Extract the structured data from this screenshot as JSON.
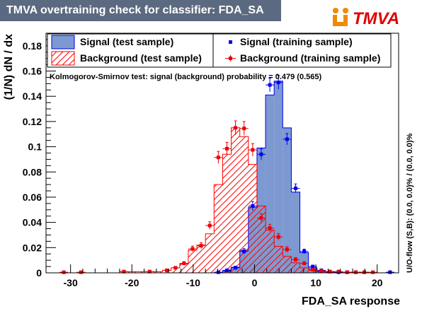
{
  "header": {
    "title": "TMVA overtraining check for classifier: FDA_SA",
    "logo_text": "TMVA"
  },
  "colors": {
    "title_bg": "#5b6a80",
    "signal_fill": "#7d99d1",
    "signal_line": "#0000ee",
    "background_hatch": "#ff0000",
    "logo_accent": "#f08a00",
    "logo_text": "#e00000"
  },
  "chart_data": {
    "type": "histogram",
    "title": "TMVA overtraining check for classifier: FDA_SA",
    "xlabel": "FDA_SA response",
    "ylabel": "(1/N) dN / dx",
    "xlim": [
      -34,
      23.5
    ],
    "ylim": [
      0,
      0.19
    ],
    "xticks": [
      -30,
      -20,
      -10,
      0,
      10,
      20
    ],
    "yticks": [
      0,
      0.02,
      0.04,
      0.06,
      0.08,
      0.1,
      0.12,
      0.14,
      0.16,
      0.18
    ],
    "grid": false,
    "bin_edges": [
      -33.2,
      -31.8,
      -30.4,
      -29.0,
      -27.6,
      -26.2,
      -24.8,
      -23.4,
      -22.0,
      -20.6,
      -19.2,
      -17.8,
      -16.4,
      -15.0,
      -13.6,
      -12.2,
      -10.8,
      -9.4,
      -8.0,
      -6.6,
      -5.2,
      -3.8,
      -2.4,
      -1.0,
      0.4,
      1.8,
      3.2,
      4.6,
      6.0,
      7.4,
      8.8,
      10.2,
      11.6,
      13.0,
      14.4,
      15.8,
      17.2,
      18.6,
      20.0,
      21.4,
      22.8
    ],
    "series": [
      {
        "name": "Signal (test sample)",
        "style": "filled-histogram",
        "values": [
          0,
          0,
          0,
          0,
          0,
          0,
          0,
          0,
          0,
          0,
          0,
          0,
          0,
          0,
          0,
          0,
          0,
          0,
          0,
          0,
          0.0015,
          0.0045,
          0.018,
          0.052,
          0.099,
          0.141,
          0.152,
          0.115,
          0.064,
          0.016,
          0.004,
          0.001,
          0.0005,
          0,
          0,
          0,
          0,
          0,
          0,
          0
        ]
      },
      {
        "name": "Background (test sample)",
        "style": "hatched-histogram",
        "values": [
          0,
          0,
          0,
          0,
          0,
          0,
          0,
          0,
          0.001,
          0.001,
          0.001,
          0.001,
          0.001,
          0.002,
          0.004,
          0.007,
          0.018,
          0.022,
          0.031,
          0.07,
          0.094,
          0.115,
          0.108,
          0.086,
          0.053,
          0.034,
          0.021,
          0.013,
          0.008,
          0.004,
          0.002,
          0.0015,
          0.001,
          0.0005,
          0.0005,
          0,
          0,
          0,
          0,
          0
        ]
      },
      {
        "name": "Signal (training sample)",
        "style": "markers",
        "x": [
          -5.9,
          -4.5,
          -3.1,
          -1.7,
          -0.3,
          1.1,
          2.5,
          3.9,
          5.3,
          6.7,
          8.1,
          9.5,
          10.9,
          12.3,
          13.7,
          15.1,
          16.5,
          17.9,
          22.1
        ],
        "y": [
          0.0005,
          0.002,
          0.004,
          0.017,
          0.053,
          0.094,
          0.149,
          0.151,
          0.106,
          0.067,
          0.017,
          0.005,
          0.002,
          0.001,
          0.0005,
          0.0005,
          0.0005,
          0.0005,
          0.0005
        ],
        "errors": [
          0.0003,
          0.001,
          0.0013,
          0.0022,
          0.0035,
          0.0045,
          0.0055,
          0.0055,
          0.0045,
          0.0035,
          0.0018,
          0.001,
          0.0006,
          0.0004,
          0.0003,
          0.0003,
          0.0003,
          0.0003,
          0.0003
        ]
      },
      {
        "name": "Background (training sample)",
        "style": "markers",
        "x": [
          -31.1,
          -28.3,
          -21.3,
          -17.1,
          -14.3,
          -12.9,
          -11.5,
          -10.1,
          -8.7,
          -7.3,
          -5.9,
          -4.5,
          -3.1,
          -1.7,
          -0.3,
          1.1,
          2.5,
          3.9,
          5.3,
          6.7,
          8.1,
          9.5,
          10.9,
          12.3,
          13.7,
          15.1,
          16.5,
          17.9,
          19.3
        ],
        "y": [
          0.0005,
          0.0005,
          0.001,
          0.001,
          0.002,
          0.004,
          0.0075,
          0.019,
          0.0215,
          0.0375,
          0.0915,
          0.0985,
          0.115,
          0.1145,
          0.0975,
          0.0435,
          0.0355,
          0.0285,
          0.0185,
          0.0105,
          0.0075,
          0.0025,
          0.0015,
          0.001,
          0.001,
          0.0005,
          0.0005,
          0.0005,
          0.0005
        ],
        "errors": [
          0.0003,
          0.0003,
          0.0005,
          0.0005,
          0.0008,
          0.001,
          0.0014,
          0.0022,
          0.0024,
          0.003,
          0.0048,
          0.005,
          0.0055,
          0.0055,
          0.005,
          0.0034,
          0.003,
          0.0027,
          0.0022,
          0.0016,
          0.0014,
          0.0008,
          0.0006,
          0.0005,
          0.0005,
          0.0003,
          0.0003,
          0.0003,
          0.0003
        ]
      }
    ],
    "legend": [
      {
        "label": "Signal (test sample)",
        "kind": "signal-test"
      },
      {
        "label": "Signal (training sample)",
        "kind": "signal-train"
      },
      {
        "label": "Background (test sample)",
        "kind": "background-test"
      },
      {
        "label": "Background (training sample)",
        "kind": "background-train"
      }
    ],
    "legend_placement": "top",
    "ks_text": "Kolmogorov-Smirnov test: signal (background) probability = 0.479 (0.565)",
    "overflow_text": "U/O-flow (S,B): (0.0, 0.0)% / (0.0, 0.0)%"
  }
}
